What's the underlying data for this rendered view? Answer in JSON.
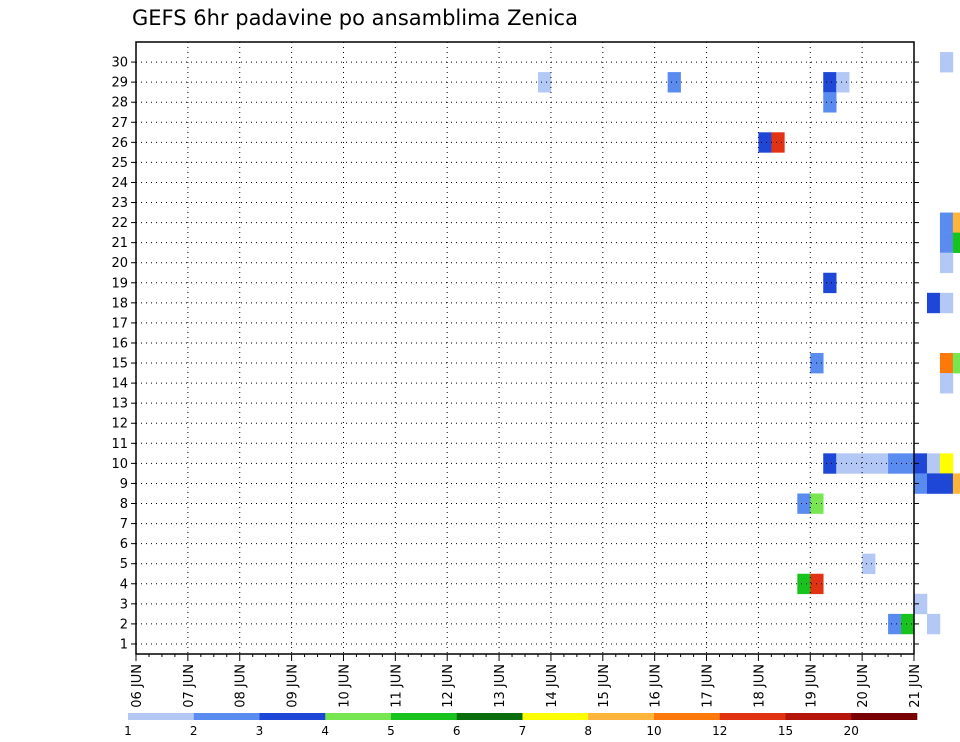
{
  "chart_data": {
    "type": "heatmap",
    "title": "GEFS 6hr padavine po ansamblima Zenica",
    "xlabel": "",
    "ylabel": "",
    "x_ticks": [
      "06 JUN",
      "07 JUN",
      "08 JUN",
      "09 JUN",
      "10 JUN",
      "11 JUN",
      "12 JUN",
      "13 JUN",
      "14 JUN",
      "15 JUN",
      "16 JUN",
      "17 JUN",
      "18 JUN",
      "19 JUN",
      "20 JUN",
      "21 JUN"
    ],
    "y_ticks": [
      "1",
      "2",
      "3",
      "4",
      "5",
      "6",
      "7",
      "8",
      "9",
      "10",
      "11",
      "12",
      "13",
      "14",
      "15",
      "16",
      "17",
      "18",
      "19",
      "20",
      "21",
      "22",
      "23",
      "24",
      "25",
      "26",
      "27",
      "28",
      "29",
      "30"
    ],
    "time_step_hours": 6,
    "members": 30,
    "grid": true,
    "legend": {
      "placement": "bottom",
      "labels": [
        "1",
        "2",
        "3",
        "4",
        "5",
        "6",
        "7",
        "8",
        "10",
        "12",
        "15",
        "20"
      ],
      "colors": [
        "#b4c8f5",
        "#5a8cf0",
        "#1e46d7",
        "#78e650",
        "#19c31e",
        "#0a6e0f",
        "#ffff00",
        "#ffb43c",
        "#ff780a",
        "#e13214",
        "#b4140a",
        "#780000"
      ]
    },
    "cells": [
      [
        62,
        29,
        0
      ],
      [
        72,
        29,
        0
      ],
      [
        75,
        29,
        1
      ],
      [
        76,
        29,
        4
      ],
      [
        77,
        29,
        0
      ],
      [
        89,
        29,
        6
      ],
      [
        90,
        29,
        7
      ],
      [
        91,
        29,
        10
      ],
      [
        92,
        29,
        11
      ],
      [
        98,
        29,
        2
      ],
      [
        31,
        28,
        0
      ],
      [
        41,
        28,
        1
      ],
      [
        53,
        28,
        2
      ],
      [
        54,
        28,
        0
      ],
      [
        67,
        28,
        0
      ],
      [
        68,
        28,
        1
      ],
      [
        87,
        28,
        0
      ],
      [
        88,
        28,
        2
      ],
      [
        89,
        28,
        3
      ],
      [
        90,
        28,
        3
      ],
      [
        53,
        27,
        1
      ],
      [
        82,
        27,
        5
      ],
      [
        83,
        27,
        2
      ],
      [
        86,
        27,
        1
      ],
      [
        94,
        27,
        4
      ],
      [
        95,
        27,
        2
      ],
      [
        97,
        27,
        3
      ],
      [
        98,
        27,
        0
      ],
      [
        69,
        26,
        1
      ],
      [
        70,
        26,
        0
      ],
      [
        48,
        25,
        2
      ],
      [
        49,
        25,
        9
      ],
      [
        68,
        25,
        1
      ],
      [
        69,
        25,
        1
      ],
      [
        73,
        25,
        0
      ],
      [
        81,
        25,
        1
      ],
      [
        82,
        25,
        0
      ],
      [
        89,
        25,
        0
      ],
      [
        93,
        25,
        0
      ],
      [
        96,
        25,
        3
      ],
      [
        97,
        25,
        2
      ],
      [
        98,
        25,
        0
      ],
      [
        88,
        24,
        0
      ],
      [
        90,
        24,
        5
      ],
      [
        94,
        24,
        5
      ],
      [
        95,
        24,
        8
      ],
      [
        97,
        24,
        2
      ],
      [
        98,
        24,
        7
      ],
      [
        69,
        23,
        5
      ],
      [
        70,
        23,
        9
      ],
      [
        71,
        23,
        8
      ],
      [
        72,
        23,
        2
      ],
      [
        73,
        23,
        6
      ],
      [
        74,
        23,
        0
      ],
      [
        88,
        23,
        4
      ],
      [
        89,
        23,
        6
      ],
      [
        90,
        23,
        3
      ],
      [
        91,
        23,
        0
      ],
      [
        90,
        22,
        2
      ],
      [
        62,
        21,
        1
      ],
      [
        63,
        21,
        7
      ],
      [
        64,
        21,
        0
      ],
      [
        65,
        21,
        0
      ],
      [
        66,
        21,
        6
      ],
      [
        67,
        21,
        1
      ],
      [
        68,
        21,
        0
      ],
      [
        69,
        21,
        4
      ],
      [
        70,
        21,
        0
      ],
      [
        88,
        21,
        0
      ],
      [
        89,
        21,
        7
      ],
      [
        62,
        20,
        1
      ],
      [
        63,
        20,
        4
      ],
      [
        64,
        20,
        3
      ],
      [
        65,
        20,
        3
      ],
      [
        66,
        20,
        5
      ],
      [
        67,
        20,
        8
      ],
      [
        69,
        20,
        5
      ],
      [
        70,
        20,
        1
      ],
      [
        73,
        20,
        2
      ],
      [
        74,
        20,
        6
      ],
      [
        81,
        20,
        4
      ],
      [
        88,
        20,
        0
      ],
      [
        62,
        19,
        0
      ],
      [
        76,
        19,
        2
      ],
      [
        78,
        19,
        2
      ],
      [
        79,
        19,
        6
      ],
      [
        80,
        19,
        0
      ],
      [
        81,
        19,
        0
      ],
      [
        82,
        19,
        7
      ],
      [
        83,
        19,
        6
      ],
      [
        95,
        19,
        6
      ],
      [
        96,
        19,
        6
      ],
      [
        97,
        19,
        0
      ],
      [
        53,
        18,
        2
      ],
      [
        88,
        18,
        0
      ],
      [
        97,
        18,
        4
      ],
      [
        98,
        18,
        3
      ],
      [
        99,
        18,
        3
      ],
      [
        100,
        18,
        7
      ],
      [
        101,
        18,
        6
      ],
      [
        61,
        17,
        2
      ],
      [
        62,
        17,
        0
      ],
      [
        75,
        17,
        7
      ],
      [
        101,
        17,
        4
      ],
      [
        86,
        16,
        1
      ],
      [
        101,
        16,
        0
      ],
      [
        74,
        15,
        7
      ],
      [
        75,
        15,
        5
      ],
      [
        96,
        15,
        3
      ],
      [
        97,
        15,
        2
      ],
      [
        52,
        14,
        1
      ],
      [
        62,
        14,
        8
      ],
      [
        63,
        14,
        3
      ],
      [
        64,
        14,
        1
      ],
      [
        65,
        14,
        3
      ],
      [
        66,
        14,
        5
      ],
      [
        67,
        14,
        1
      ],
      [
        69,
        14,
        7
      ],
      [
        70,
        14,
        3
      ],
      [
        73,
        14,
        1
      ],
      [
        74,
        14,
        3
      ],
      [
        81,
        14,
        4
      ],
      [
        84,
        14,
        3
      ],
      [
        85,
        14,
        1
      ],
      [
        87,
        14,
        0
      ],
      [
        100,
        14,
        6
      ],
      [
        101,
        14,
        1
      ],
      [
        62,
        13,
        0
      ],
      [
        70,
        13,
        0
      ],
      [
        67,
        11,
        0
      ],
      [
        68,
        11,
        0
      ],
      [
        78,
        10,
        0
      ],
      [
        79,
        10,
        1
      ],
      [
        86,
        10,
        1
      ],
      [
        87,
        10,
        0
      ],
      [
        88,
        10,
        0
      ],
      [
        89,
        10,
        2
      ],
      [
        97,
        10,
        1
      ],
      [
        98,
        10,
        3
      ],
      [
        53,
        9,
        2
      ],
      [
        54,
        9,
        0
      ],
      [
        55,
        9,
        0
      ],
      [
        56,
        9,
        0
      ],
      [
        57,
        9,
        0
      ],
      [
        58,
        9,
        1
      ],
      [
        59,
        9,
        1
      ],
      [
        60,
        9,
        2
      ],
      [
        61,
        9,
        0
      ],
      [
        62,
        9,
        6
      ],
      [
        70,
        9,
        0
      ],
      [
        71,
        9,
        0
      ],
      [
        73,
        9,
        0
      ],
      [
        74,
        9,
        8
      ],
      [
        75,
        9,
        11
      ],
      [
        76,
        9,
        0
      ],
      [
        77,
        9,
        3
      ],
      [
        78,
        9,
        0
      ],
      [
        60,
        8,
        1
      ],
      [
        61,
        8,
        2
      ],
      [
        62,
        8,
        2
      ],
      [
        63,
        8,
        7
      ],
      [
        68,
        8,
        1
      ],
      [
        69,
        8,
        2
      ],
      [
        82,
        8,
        4
      ],
      [
        83,
        8,
        7
      ],
      [
        93,
        8,
        2
      ],
      [
        51,
        7,
        1
      ],
      [
        52,
        7,
        3
      ],
      [
        98,
        7,
        7
      ],
      [
        99,
        6,
        0
      ],
      [
        99,
        5,
        0
      ],
      [
        56,
        4,
        0
      ],
      [
        74,
        4,
        1
      ],
      [
        75,
        4,
        6
      ],
      [
        86,
        4,
        1
      ],
      [
        51,
        3,
        4
      ],
      [
        52,
        3,
        9
      ],
      [
        68,
        3,
        5
      ],
      [
        69,
        3,
        9
      ],
      [
        97,
        3,
        0
      ],
      [
        99,
        3,
        0
      ],
      [
        60,
        2,
        0
      ],
      [
        64,
        2,
        7
      ],
      [
        65,
        2,
        2
      ],
      [
        80,
        2,
        0
      ],
      [
        82,
        2,
        1
      ],
      [
        83,
        2,
        0
      ],
      [
        89,
        2,
        0
      ],
      [
        90,
        2,
        0
      ],
      [
        93,
        2,
        4
      ],
      [
        94,
        2,
        2
      ],
      [
        58,
        1,
        1
      ],
      [
        59,
        1,
        4
      ],
      [
        61,
        1,
        0
      ],
      [
        68,
        1,
        1
      ],
      [
        72,
        1,
        0
      ],
      [
        74,
        1,
        9
      ],
      [
        75,
        1,
        8
      ],
      [
        76,
        1,
        11
      ],
      [
        77,
        1,
        0
      ],
      [
        91,
        0,
        4
      ]
    ]
  }
}
